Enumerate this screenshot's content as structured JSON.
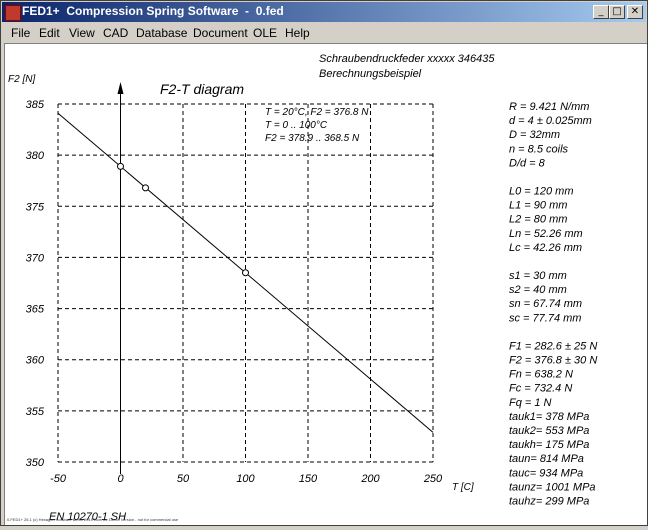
{
  "window": {
    "title": "Compression Spring Software  -  0.fed",
    "app_name": "FED1+",
    "controls": {
      "minimize": "_",
      "maximize": "□",
      "close": "✕"
    }
  },
  "menu": [
    "File",
    "Edit",
    "View",
    "CAD",
    "Database",
    "Document",
    "OLE",
    "Help"
  ],
  "header": {
    "line1": "Schraubendruckfeder xxxxx  346435",
    "line2": "Berechnungsbeispiel"
  },
  "chart_title": "F2-T diagram",
  "standard": "EN 10270-1 SH",
  "annotation": [
    "T = 20°C, F2 = 376.8 N",
    "T = 0 .. 100°C",
    "F2 = 378.9 .. 368.5 N"
  ],
  "results_groups": [
    [
      "R  = 9.421 N/mm",
      "d  = 4 ± 0.025mm",
      "D = 32mm",
      "n  = 8.5 coils",
      "D/d = 8"
    ],
    [
      "L0 = 120 mm",
      "L1 = 90 mm",
      "L2 = 80 mm",
      "Ln = 52.26 mm",
      "Lc = 42.26 mm"
    ],
    [
      "s1 = 30 mm",
      "s2 = 40 mm",
      "sn = 67.74 mm",
      "sc = 77.74 mm"
    ],
    [
      "F1 = 282.6 ± 25 N",
      "F2 = 376.8 ± 30 N",
      "Fn = 638.2 N",
      "Fc = 732.4 N",
      "Fq = 1 N",
      "tauk1=  378 MPa",
      "tauk2=  553 MPa",
      "taukh=  175 MPa",
      "taun=  814 MPa",
      "tauc=  934 MPa",
      "taunz= 1001 MPa",
      "tauhz=  299 MPa"
    ]
  ],
  "chart_data": {
    "type": "line",
    "xlabel": "T [C]",
    "ylabel": "F2 [N]",
    "xlim": [
      -50,
      250
    ],
    "ylim": [
      350,
      385
    ],
    "x_ticks": [
      "-50",
      "0",
      "50",
      "100",
      "150",
      "200",
      "250"
    ],
    "y_ticks": [
      "350",
      "355",
      "360",
      "365",
      "370",
      "375",
      "380",
      "385"
    ],
    "grid": true,
    "series": [
      {
        "x": [
          -50,
          250
        ],
        "y": [
          384.1,
          352.9
        ]
      }
    ],
    "markers": {
      "x": [
        0,
        20,
        100
      ],
      "y": [
        378.9,
        376.8,
        368.5
      ]
    }
  },
  "status_text": "0.FED1+ 26.1 (c) Hexagon Software Berlin 2019 Licence Demo Version - not for commercial use"
}
